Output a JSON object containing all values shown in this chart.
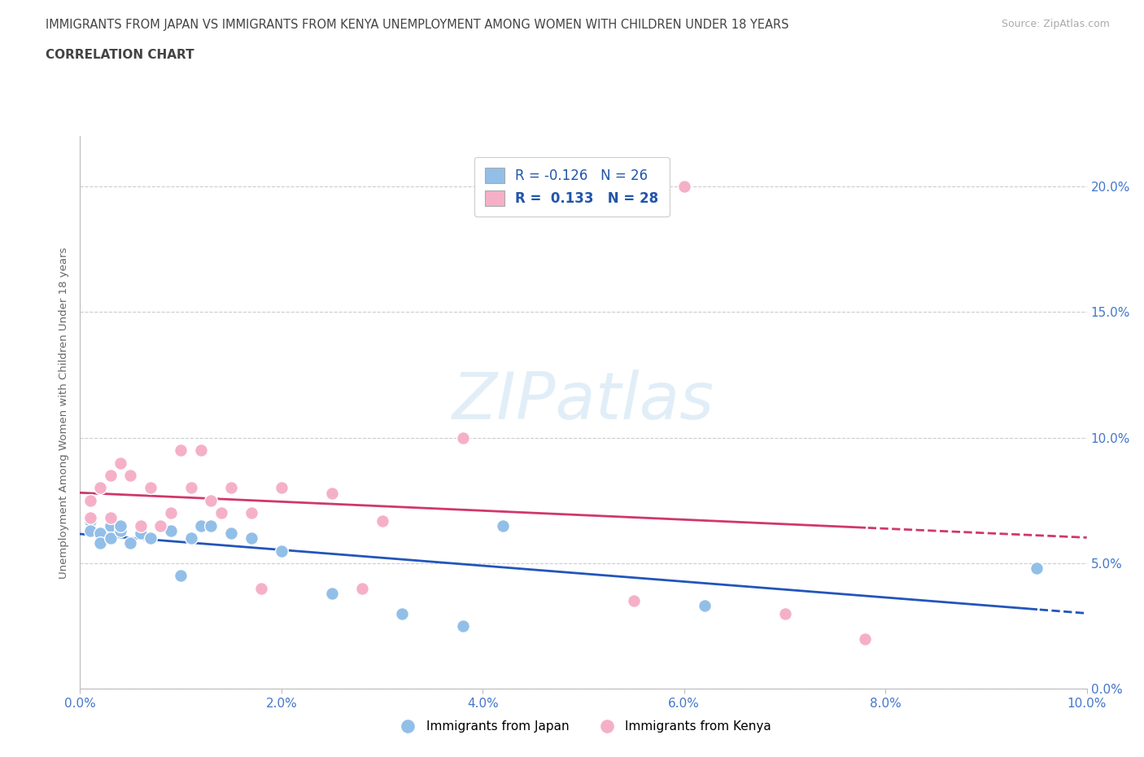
{
  "title_line1": "IMMIGRANTS FROM JAPAN VS IMMIGRANTS FROM KENYA UNEMPLOYMENT AMONG WOMEN WITH CHILDREN UNDER 18 YEARS",
  "title_line2": "CORRELATION CHART",
  "source": "Source: ZipAtlas.com",
  "ylabel": "Unemployment Among Women with Children Under 18 years",
  "watermark": "ZIPatlas",
  "japan_R": -0.126,
  "japan_N": 26,
  "kenya_R": 0.133,
  "kenya_N": 28,
  "japan_color": "#92bfe8",
  "kenya_color": "#f5b0c8",
  "japan_line_color": "#2255bb",
  "kenya_line_color": "#d03868",
  "japan_x": [
    0.001,
    0.001,
    0.002,
    0.002,
    0.003,
    0.003,
    0.004,
    0.004,
    0.005,
    0.006,
    0.007,
    0.008,
    0.009,
    0.01,
    0.011,
    0.012,
    0.013,
    0.015,
    0.017,
    0.02,
    0.025,
    0.032,
    0.038,
    0.042,
    0.062,
    0.095
  ],
  "japan_y": [
    0.067,
    0.063,
    0.062,
    0.058,
    0.065,
    0.06,
    0.063,
    0.065,
    0.058,
    0.062,
    0.06,
    0.065,
    0.063,
    0.045,
    0.06,
    0.065,
    0.065,
    0.062,
    0.06,
    0.055,
    0.038,
    0.03,
    0.025,
    0.065,
    0.033,
    0.048
  ],
  "kenya_x": [
    0.001,
    0.001,
    0.002,
    0.003,
    0.003,
    0.004,
    0.005,
    0.006,
    0.007,
    0.008,
    0.009,
    0.01,
    0.011,
    0.012,
    0.013,
    0.014,
    0.015,
    0.017,
    0.018,
    0.02,
    0.025,
    0.028,
    0.03,
    0.038,
    0.055,
    0.06,
    0.07,
    0.078
  ],
  "kenya_y": [
    0.068,
    0.075,
    0.08,
    0.068,
    0.085,
    0.09,
    0.085,
    0.065,
    0.08,
    0.065,
    0.07,
    0.095,
    0.08,
    0.095,
    0.075,
    0.07,
    0.08,
    0.07,
    0.04,
    0.08,
    0.078,
    0.04,
    0.067,
    0.1,
    0.035,
    0.2,
    0.03,
    0.02
  ],
  "xlim": [
    0.0,
    0.1
  ],
  "ylim": [
    0.0,
    0.22
  ],
  "xticks": [
    0.0,
    0.02,
    0.04,
    0.06,
    0.08,
    0.1
  ],
  "yticks": [
    0.0,
    0.05,
    0.1,
    0.15,
    0.2
  ],
  "background_color": "#ffffff",
  "grid_color": "#cccccc",
  "title_color": "#444444",
  "axis_label_color": "#666666",
  "tick_label_color": "#4477cc",
  "legend_color": "#2255aa"
}
